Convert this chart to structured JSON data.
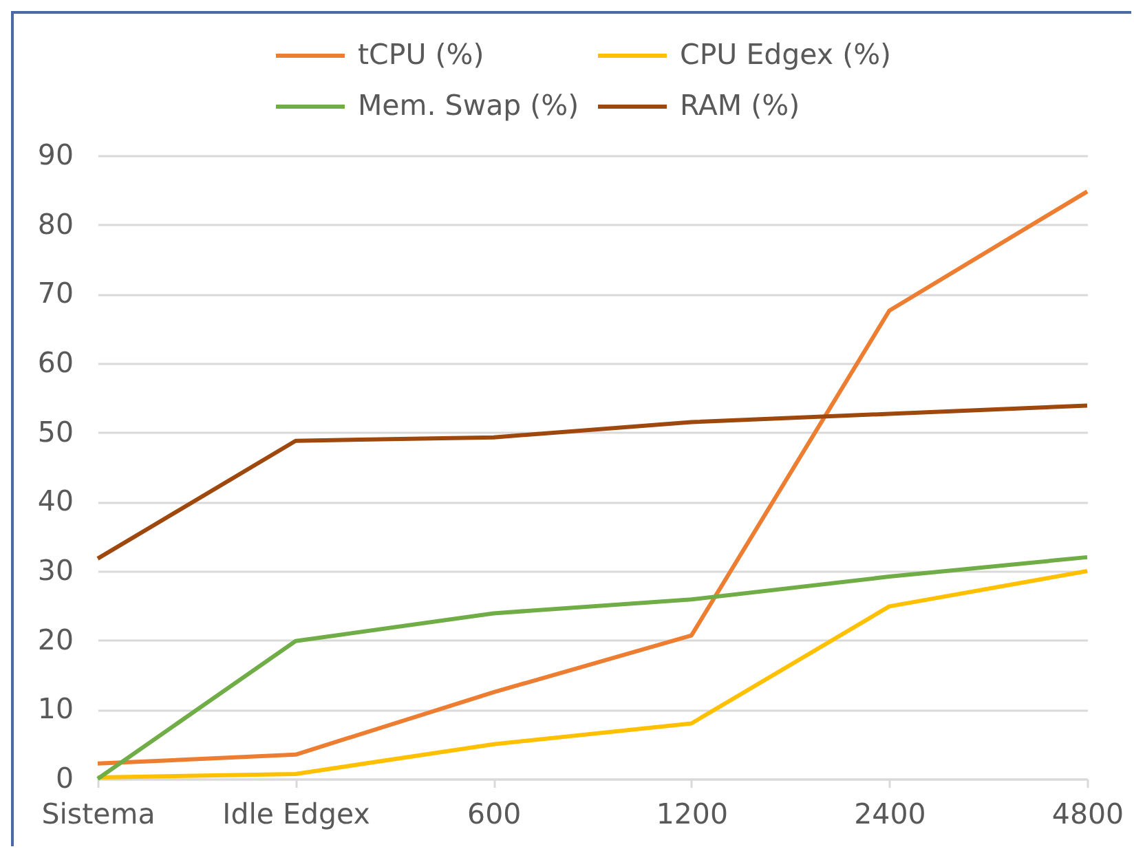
{
  "chart_data": {
    "type": "line",
    "categories": [
      "Sistema",
      "Idle Edgex",
      "600",
      "1200",
      "2400",
      "4800"
    ],
    "series": [
      {
        "name": "tCPU (%)",
        "color": "#ed7d31",
        "values": [
          2.2,
          3.5,
          12.5,
          20.7,
          67.6,
          84.8
        ]
      },
      {
        "name": "CPU Edgex (%)",
        "color": "#ffc000",
        "values": [
          0.2,
          0.7,
          5.0,
          8.0,
          24.9,
          30.0
        ]
      },
      {
        "name": "Mem. Swap (%)",
        "color": "#70ad47",
        "values": [
          0,
          19.9,
          23.9,
          25.9,
          29.2,
          32.0
        ]
      },
      {
        "name": "RAM (%)",
        "color": "#9e480e",
        "values": [
          31.8,
          48.8,
          49.3,
          51.5,
          52.7,
          53.9
        ]
      }
    ],
    "ylim": [
      0,
      90
    ],
    "yticks": [
      0,
      10,
      20,
      30,
      40,
      50,
      60,
      70,
      80,
      90
    ],
    "grid": "y",
    "legend": "top",
    "line_style": "solid"
  }
}
